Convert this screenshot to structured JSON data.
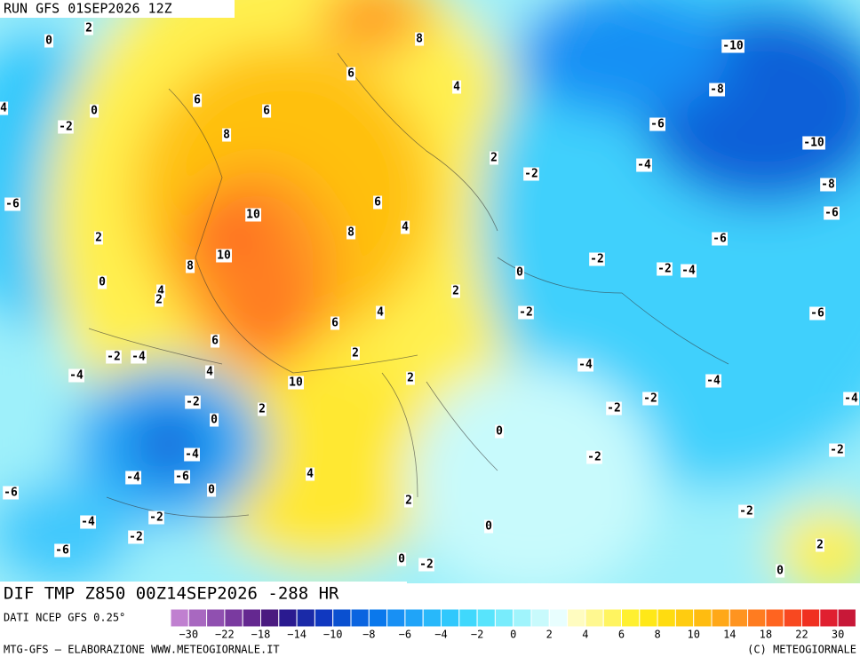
{
  "header": {
    "run": "RUN GFS 01SEP2026 12Z"
  },
  "footer": {
    "title": "DIF TMP Z850 00Z14SEP2026 -288 HR",
    "source": "DATI NCEP GFS 0.25°",
    "credit_left": "MTG-GFS — ELABORAZIONE WWW.METEOGIORNALE.IT",
    "credit_right": "(C) METEOGIORNALE"
  },
  "legend": {
    "labels": [
      "−30",
      "−22",
      "−18",
      "−14",
      "−10",
      "−8",
      "−6",
      "−4",
      "−2",
      "0",
      "2",
      "4",
      "6",
      "8",
      "10",
      "14",
      "18",
      "22",
      "30"
    ],
    "colors": [
      "#c080d0",
      "#a868c0",
      "#9050b0",
      "#7a3aa0",
      "#642890",
      "#4a1a80",
      "#2a1a90",
      "#1a2aa8",
      "#1038c0",
      "#0a50d0",
      "#0a64e0",
      "#0a78ec",
      "#1890f4",
      "#20a4f8",
      "#28b8fa",
      "#30c8fc",
      "#40d8fc",
      "#58e4fc",
      "#78ecfc",
      "#a0f4fc",
      "#c8fafc",
      "#e8fefe",
      "#fffcc0",
      "#fff890",
      "#fff460",
      "#fff030",
      "#ffe818",
      "#ffdc10",
      "#ffcc10",
      "#ffbc10",
      "#ffa818",
      "#ff9420",
      "#ff7c20",
      "#ff6420",
      "#f84820",
      "#f03020",
      "#e02030",
      "#c81838"
    ]
  },
  "map": {
    "labels": [
      "2",
      "0",
      "8",
      "-10",
      "4",
      "6",
      "6",
      "0",
      "6",
      "4",
      "-8",
      "-2",
      "8",
      "-6",
      "-10",
      "2",
      "-4",
      "-2",
      "-8",
      "-6",
      "6",
      "10",
      "-6",
      "4",
      "2",
      "8",
      "-6",
      "10",
      "-2",
      "-2",
      "-4",
      "8",
      "0",
      "0",
      "4",
      "2",
      "2",
      "4",
      "-2",
      "-6",
      "6",
      "6",
      "2",
      "-2",
      "-4",
      "4",
      "-4",
      "-4",
      "-4",
      "10",
      "2",
      "-2",
      "-2",
      "-4",
      "-2",
      "0",
      "2",
      "0",
      "-4",
      "-2",
      "-2",
      "-4",
      "-6",
      "4",
      "-6",
      "0",
      "2",
      "-2",
      "-2",
      "-4",
      "0",
      "-2",
      "2",
      "-6",
      "0",
      "-2",
      "0"
    ]
  }
}
